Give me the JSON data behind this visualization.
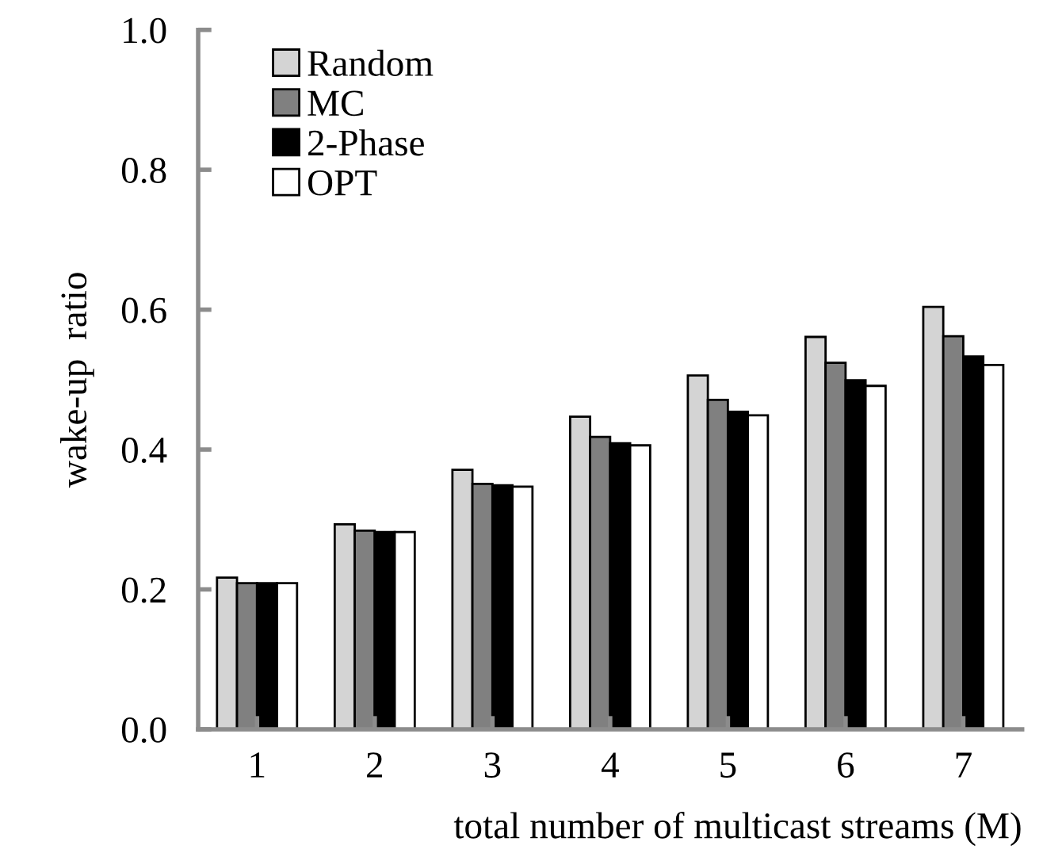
{
  "chart_data": {
    "type": "bar",
    "xlabel": "total number of multicast streams (M)",
    "ylabel": "wake-up  ratio",
    "categories": [
      "1",
      "2",
      "3",
      "4",
      "5",
      "6",
      "7"
    ],
    "series": [
      {
        "name": "Random",
        "color": "#d4d4d4",
        "values": [
          0.217,
          0.293,
          0.371,
          0.447,
          0.506,
          0.561,
          0.604
        ]
      },
      {
        "name": "MC",
        "color": "#808080",
        "values": [
          0.209,
          0.284,
          0.351,
          0.418,
          0.471,
          0.524,
          0.562
        ]
      },
      {
        "name": "2-Phase",
        "color": "#000000",
        "values": [
          0.209,
          0.282,
          0.349,
          0.409,
          0.454,
          0.499,
          0.533
        ]
      },
      {
        "name": "OPT",
        "color": "#ffffff",
        "values": [
          0.209,
          0.282,
          0.347,
          0.406,
          0.449,
          0.491,
          0.521
        ]
      }
    ],
    "ylim": [
      0,
      1.0
    ],
    "yticks": [
      {
        "value": 0,
        "label": "0.0"
      },
      {
        "value": 0.2,
        "label": "0.2"
      },
      {
        "value": 0.4,
        "label": "0.4"
      },
      {
        "value": 0.6,
        "label": "0.6"
      },
      {
        "value": 0.8,
        "label": "0.8"
      },
      {
        "value": 1.0,
        "label": "1.0"
      }
    ],
    "grid": false,
    "legend": "top left"
  }
}
